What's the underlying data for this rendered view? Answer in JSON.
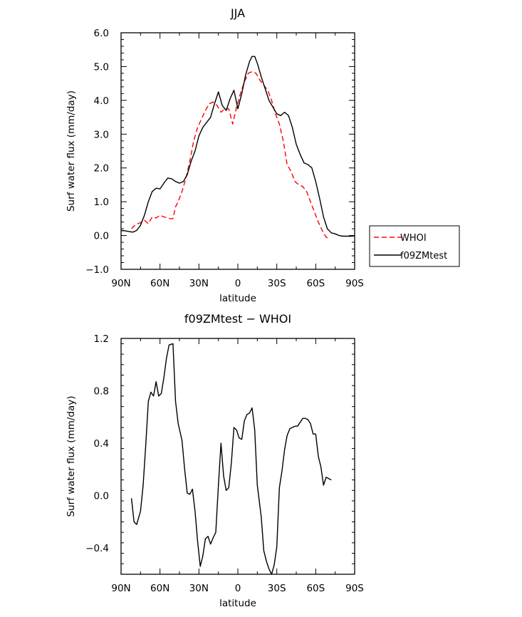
{
  "chart_data": [
    {
      "type": "line",
      "title": "JJA",
      "xlabel": "latitude",
      "ylabel": "Surf water flux (mm/day)",
      "xlim": [
        90,
        -90
      ],
      "ylim": [
        -1.0,
        6.0
      ],
      "x_ticks": [
        90,
        60,
        30,
        0,
        -30,
        -60,
        -90
      ],
      "x_tick_labels": [
        "90N",
        "60N",
        "30N",
        "0",
        "30S",
        "60S",
        "90S"
      ],
      "y_ticks": [
        -1.0,
        0.0,
        1.0,
        2.0,
        3.0,
        4.0,
        5.0,
        6.0
      ],
      "y_tick_labels": [
        "−1.0",
        "0.0",
        "1.0",
        "2.0",
        "3.0",
        "4.0",
        "5.0",
        "6.0"
      ],
      "legend": "right",
      "series": [
        {
          "name": "WHOI",
          "color": "#ff0000",
          "dash": "dashed",
          "x": [
            82,
            79,
            75,
            72,
            69,
            66,
            63,
            60,
            57,
            54,
            52,
            50,
            48,
            46,
            43,
            40,
            37,
            34,
            31,
            28,
            25,
            22,
            19,
            16,
            13,
            10,
            7,
            4,
            1,
            -2,
            -5,
            -8,
            -11,
            -14,
            -17,
            -20,
            -23,
            -26,
            -29,
            -32,
            -35,
            -38,
            -41,
            -44,
            -47,
            -50,
            -53,
            -56,
            -59,
            -62,
            -65,
            -68,
            -71
          ],
          "y": [
            0.2,
            0.32,
            0.38,
            0.45,
            0.35,
            0.55,
            0.52,
            0.6,
            0.55,
            0.52,
            0.5,
            0.5,
            0.85,
            1.0,
            1.3,
            1.7,
            2.2,
            2.8,
            3.2,
            3.45,
            3.7,
            3.9,
            3.95,
            3.85,
            3.65,
            3.75,
            3.75,
            3.3,
            3.8,
            4.2,
            4.55,
            4.8,
            4.85,
            4.8,
            4.6,
            4.45,
            4.3,
            4.0,
            3.6,
            3.3,
            2.8,
            2.1,
            1.9,
            1.6,
            1.5,
            1.45,
            1.3,
            1.0,
            0.7,
            0.4,
            0.15,
            -0.05,
            -0.1
          ]
        },
        {
          "name": "f09ZMtest",
          "color": "#000000",
          "dash": "solid",
          "x": [
            90,
            87,
            84,
            81,
            78,
            75,
            72,
            69,
            66,
            63,
            60,
            57,
            54,
            51,
            48,
            45,
            42,
            39,
            36,
            33,
            30,
            27,
            24,
            21,
            18,
            15,
            12,
            9,
            6,
            3,
            0,
            -3,
            -6,
            -9,
            -11,
            -13,
            -15,
            -18,
            -21,
            -24,
            -27,
            -30,
            -33,
            -36,
            -39,
            -42,
            -45,
            -48,
            -51,
            -54,
            -57,
            -60,
            -63,
            -66,
            -69,
            -72,
            -75,
            -78,
            -81,
            -84,
            -87,
            -90
          ],
          "y": [
            0.15,
            0.14,
            0.12,
            0.1,
            0.15,
            0.3,
            0.6,
            1.0,
            1.3,
            1.4,
            1.38,
            1.55,
            1.7,
            1.68,
            1.6,
            1.55,
            1.6,
            1.8,
            2.2,
            2.5,
            2.95,
            3.2,
            3.35,
            3.5,
            3.9,
            4.25,
            3.85,
            3.7,
            4.05,
            4.3,
            3.75,
            4.2,
            4.75,
            5.15,
            5.3,
            5.3,
            5.1,
            4.7,
            4.35,
            4.0,
            3.8,
            3.6,
            3.55,
            3.65,
            3.55,
            3.2,
            2.7,
            2.4,
            2.15,
            2.1,
            2.0,
            1.6,
            1.1,
            0.55,
            0.2,
            0.08,
            0.05,
            0.0,
            -0.02,
            -0.02,
            -0.02,
            -0.01
          ]
        }
      ]
    },
    {
      "type": "line",
      "title": "f09ZMtest − WHOI",
      "xlabel": "latitude",
      "ylabel": "Surf water flux (mm/day)",
      "xlim": [
        90,
        -90
      ],
      "ylim": [
        -0.6,
        1.2
      ],
      "x_ticks": [
        90,
        60,
        30,
        0,
        -30,
        -60,
        -90
      ],
      "x_tick_labels": [
        "90N",
        "60N",
        "30N",
        "0",
        "30S",
        "60S",
        "90S"
      ],
      "y_ticks": [
        -0.4,
        0.0,
        0.4,
        0.8,
        1.2
      ],
      "y_tick_labels": [
        "−0.4",
        "0.0",
        "0.4",
        "0.8",
        "1.2"
      ],
      "series": [
        {
          "name": "",
          "color": "#000000",
          "dash": "solid",
          "x": [
            82,
            80,
            78,
            75,
            73,
            71,
            69,
            67,
            65,
            63,
            61,
            59,
            57,
            55,
            53,
            50,
            48,
            46,
            43,
            41,
            39,
            37,
            35,
            33,
            31,
            29,
            27,
            25,
            23,
            21,
            19,
            17,
            15,
            13,
            11,
            9,
            7,
            5,
            3,
            1,
            -1,
            -3,
            -5,
            -7,
            -9,
            -11,
            -13,
            -15,
            -18,
            -20,
            -22,
            -24,
            -26,
            -28,
            -30,
            -32,
            -34,
            -36,
            -38,
            -40,
            -42,
            -44,
            -46,
            -48,
            -50,
            -52,
            -54,
            -56,
            -58,
            -60,
            -62,
            -64,
            -66,
            -68,
            -70,
            -72
          ],
          "y": [
            -0.02,
            -0.2,
            -0.22,
            -0.12,
            0.08,
            0.38,
            0.72,
            0.79,
            0.76,
            0.87,
            0.76,
            0.78,
            0.9,
            1.05,
            1.15,
            1.16,
            0.72,
            0.55,
            0.42,
            0.2,
            0.02,
            0.01,
            0.05,
            -0.12,
            -0.35,
            -0.54,
            -0.46,
            -0.33,
            -0.31,
            -0.37,
            -0.32,
            -0.28,
            0.08,
            0.4,
            0.15,
            0.04,
            0.06,
            0.25,
            0.52,
            0.5,
            0.44,
            0.43,
            0.57,
            0.62,
            0.63,
            0.67,
            0.5,
            0.08,
            -0.16,
            -0.42,
            -0.5,
            -0.56,
            -0.6,
            -0.53,
            -0.39,
            0.06,
            0.19,
            0.35,
            0.46,
            0.51,
            0.52,
            0.53,
            0.53,
            0.56,
            0.59,
            0.59,
            0.58,
            0.55,
            0.47,
            0.47,
            0.3,
            0.22,
            0.08,
            0.14,
            0.13,
            0.12
          ]
        }
      ]
    }
  ]
}
